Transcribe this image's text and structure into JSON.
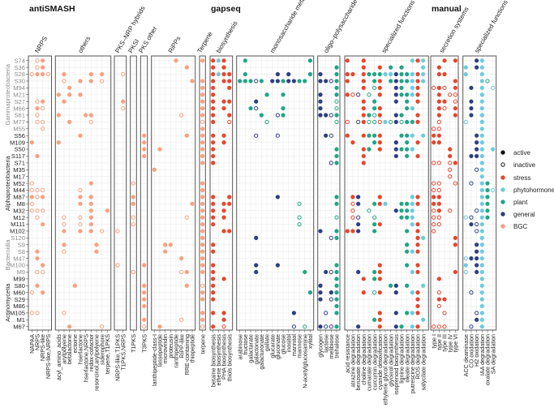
{
  "chart_data": {
    "type": "dot-matrix",
    "legend_position": "right",
    "colors": {
      "S": "#e8452c",
      "P": "#6ccbe0",
      "L": "#21a585",
      "G": "#2e3f80",
      "B": "#f7a081",
      "active": "#111111"
    },
    "legend": [
      {
        "key": "active",
        "label": "active"
      },
      {
        "key": "inactive",
        "label": "inactive"
      },
      {
        "key": "S",
        "label": "stress"
      },
      {
        "key": "P",
        "label": "phytohormone"
      },
      {
        "key": "L",
        "label": "plant"
      },
      {
        "key": "G",
        "label": "general"
      },
      {
        "key": "B",
        "label": "BGC"
      }
    ],
    "groups": [
      {
        "name": "Gammaproteobacteria",
        "rows": [
          0,
          10
        ],
        "color": "#8a8a8a"
      },
      {
        "name": "Alphaproteobacteria",
        "rows": [
          11,
          25
        ],
        "color": "#222222"
      },
      {
        "name": "Bacteroidia",
        "rows": [
          26,
          31
        ],
        "color": "#8a8a8a"
      },
      {
        "name": "Actinomycetia",
        "rows": [
          32,
          39
        ],
        "color": "#222222"
      }
    ],
    "strains": [
      "S74",
      "S36",
      "S28",
      "S30",
      "M94",
      "M21",
      "S27",
      "M66",
      "S61",
      "M77",
      "M55",
      "S56",
      "M109",
      "S50",
      "S117",
      "S71",
      "M35",
      "M17",
      "M52",
      "M44",
      "M87",
      "M8",
      "M32",
      "M12",
      "M111",
      "M102",
      "S120",
      "S9",
      "S8",
      "M47",
      "M100",
      "M9",
      "M99",
      "S80",
      "M60",
      "S29",
      "M86",
      "M105",
      "M1",
      "M67"
    ],
    "sections": [
      {
        "title": "antiSMASH",
        "panel": 0
      },
      {
        "title": "gapseq",
        "panel": 7
      },
      {
        "title": "manual",
        "panel": 11
      }
    ],
    "panels": [
      {
        "header": "NRPS",
        "columns": [
          "NAPAA",
          "NRPS",
          "NRPS-like",
          "NRPS-like,NRPS"
        ],
        "dots": {
          "0": ".bB.",
          "1": ".bB.",
          "2": "bBBb",
          "6": ".bB.",
          "7": ".Bb.",
          "8": ".b..",
          "9": ".bb.",
          "10": "..b.",
          "12": "B...",
          "14": ".B..",
          "18": "b...",
          "19": "bbb.",
          "20": "BbB.",
          "21": "b...",
          "22": "bbb.",
          "23": ".b..",
          "24": "..B.",
          "28": ".B..",
          "29": ".B..",
          "30": "..B.",
          "31": ".bb.",
          "33": ".B..",
          "34": "b.B.",
          "37": "bb.."
        }
      },
      {
        "header": "others",
        "columns": [
          "acyl_amino_acids",
          "arylpolyene",
          "betalactone",
          "ectoine",
          "hserlactone",
          "hserlactone,NRPS",
          "redox-cofactor",
          "resorcinol,arylpolyene",
          "siderophore",
          "terpene,T1PKS"
        ],
        "dots": {
          "2": ".B....B.B.",
          "3": ".b..B.B.b.",
          "4": "..B.......",
          "5": "B.B.B.....",
          "6": ".B........",
          "8": "B....BB...",
          "9": "..B...b...",
          "11": "....B.....",
          "12": "B.........",
          "18": "......B...",
          "19": "....b.....",
          "20": "....B.B...",
          "21": "....B.B...",
          "22": "......B..B",
          "23": ".b..b.B...",
          "24": ".b..b.B...",
          "25": ".B..B.B.b.",
          "27": ".B.....B..",
          "28": ".b.....B..",
          "33": "...B......",
          "37": ".b........",
          "39": "..B.....b."
        }
      },
      {
        "header": "PKS–NRP hybrids",
        "columns": [
          "NRPS-like,T1PKS",
          "T1PKS,NRPS"
        ],
        "dots": {
          "2": ".b",
          "6": ".B",
          "7": ".b",
          "25": "b.",
          "30": "b."
        }
      },
      {
        "header": "PKSI",
        "columns": [
          "T1PKS"
        ],
        "dots": {
          "18": "b",
          "20": "B",
          "21": "B",
          "23": "b",
          "24": "b",
          "31": "b"
        }
      },
      {
        "header": "PKS other",
        "columns": [
          "T3PKS"
        ],
        "dots": {
          "11": "B",
          "12": "B",
          "13": "B",
          "14": "B",
          "30": "B",
          "33": "B",
          "34": "B",
          "35": "B",
          "36": "B",
          "38": "B",
          "39": "b"
        }
      },
      {
        "header": "RiPPs",
        "columns": [
          "lanthipeptide-class-I",
          "lassopeptide",
          "microviridin",
          "proteusin",
          "ranthipeptide",
          "RiPP-like",
          "RRE-containing",
          "thiopeptide"
        ],
        "dots": {
          "0": "....B...",
          "1": "......B.",
          "3": ".......B",
          "8": ".....b..",
          "11": "......B.",
          "13": ".B......",
          "16": "B.......",
          "21": ".......B",
          "23": "......b.",
          "27": "..BB....",
          "28": "..B.....",
          "29": ".....B..",
          "31": ".....bB.",
          "33": "......B.",
          "38": ".....b..",
          "39": ".B......"
        }
      },
      {
        "header": "Terpene",
        "columns": [
          "terpene"
        ],
        "dots": {
          "0": "B",
          "3": "B",
          "4": "B",
          "5": "B",
          "6": "B",
          "7": "B",
          "8": "B",
          "9": "b",
          "10": "B",
          "11": "B",
          "12": "B",
          "13": "B",
          "14": "B",
          "15": "B",
          "18": "B",
          "19": "B",
          "20": "B",
          "21": "B",
          "22": "B",
          "23": "B",
          "24": "B",
          "25": "B",
          "26": "B",
          "27": "B",
          "28": "B",
          "29": "B",
          "30": "B",
          "31": "B",
          "33": "b",
          "34": "B",
          "35": "B",
          "37": "B",
          "38": "B",
          "39": "b"
        }
      },
      {
        "header": "biosynthesis",
        "columns": [
          "betaine biosynthesis",
          "ethene biosynthesis",
          "PHA biosynthesis",
          "thiols biosynthesis"
        ],
        "dots": {
          "0": "SPS.",
          "1": "S.S.",
          "2": "SPSS",
          "3": "S.SS",
          "4": "S..S",
          "5": "S...",
          "6": "S.SS",
          "7": "S.S.",
          "8": "S..S",
          "9": "S..s",
          "11": "S.S.",
          "12": "S.S.",
          "13": "S...",
          "14": "S...",
          "15": "S...",
          "20": "S..S",
          "21": "S.SS",
          "22": "S.S.",
          "23": "S.S.",
          "24": "S...",
          "25": "..SS",
          "27": "S...",
          "28": "S...",
          "30": "S...",
          "31": "S...",
          "32": "S.S.",
          "33": "S...",
          "34": "S...",
          "35": "S...",
          "37": "S.S.",
          "38": "..S.",
          "39": "S.s."
        }
      },
      {
        "header": "monosaccharide metabolism",
        "columns": [
          "arabinose",
          "fructose",
          "galactarate",
          "galactonate",
          "galacturonate",
          "gallate",
          "glucarate",
          "gluconate",
          "glucose",
          "inositol",
          "mannitol",
          "mannose",
          "N-acetylglucosamine",
          "xylitol"
        ],
        "dots": {
          "0": ".L...........L",
          "2": ".L.....G.G...L",
          "3": "LLLgL.GGLGGLL.",
          "5": ".....L..L.....",
          "6": "...G..........",
          "7": "..Lg....L.....",
          "8": "....L..gL.....",
          "9": ".....l........",
          "11": "...g...g......",
          "20": ".......G......",
          "21": "...........l..",
          "23": "...........l..",
          "24": "...........l..",
          "26": "...G..........",
          "30": "...G...G......",
          "31": "...G........L.",
          "34": ".............L",
          "37": "..........G...",
          "39": "..........g.l."
        }
      },
      {
        "header": "oligo–polysaccharide metabolism",
        "columns": [
          "glycogen",
          "lactose",
          "melibiose",
          "trehalose"
        ],
        "dots": {
          "1": "...L",
          "2": "G..L",
          "3": "GGgL",
          "4": "...L",
          "5": "G..L",
          "6": "G..l",
          "7": "G..l",
          "8": "GGgL",
          "9": "...l",
          "11": ".Gg.",
          "13": "...L",
          "14": "...L",
          "15": "..gL",
          "20": "...L",
          "21": "...L",
          "23": "...l",
          "25": "G..L",
          "26": "..gL",
          "30": "...L",
          "31": ".GgL",
          "32": "...L",
          "33": "G..L",
          "34": "G.GL",
          "35": "G.gL",
          "36": "...L",
          "37": ".g.L",
          "39": "GggL"
        }
      },
      {
        "header": "specialized functions",
        "columns": [
          "acid resistance",
          "atrazine degradation",
          "benzoate degradation",
          "choline degradation",
          "cumarate degradation",
          "curcumin degradation",
          "cyanide detoxification",
          "ethylene glycol degradation",
          "glycerol degradation",
          "isoprenoid biosynthesis",
          "lignine degradation",
          "oleate degradation",
          "putrescine degradation",
          "ROS degradation",
          "salycilate degradation"
        ],
        "dots": {
          "0": "S..S........PSP",
          "1": "...S..S.L.L...P",
          "2": "SS.SLLLPPGLLPSP",
          "3": "S..S.LS.LGLLPSP",
          "4": "...S.lS..GL.PS.",
          "5": "Ssg.l.S..GLLPS.",
          "6": "...S.L...G.L.S.",
          "7": "...S.LS....LP..",
          "8": "...SLlS..GL..S.",
          "9": "s.gSllsPlGlLLS.",
          "11": "S..SLLS...LLP.P",
          "12": ".S...LS..G.L.S.",
          "13": "...SL.S..GLLP..",
          "14": "...S.....G.L.S.",
          "15": "...S...........",
          "20": ".SG...S.....PS.",
          "21": ".sG..LSP..LLPS.",
          "22": ".s..l....GLLP..",
          "23": ".sg..l....LLP..",
          "24": "..G..LS.....PS.",
          "25": "SSG..L.....L.S.",
          "26": ".............SP",
          "27": "...........L.S.",
          "28": "...........LPS.",
          "30": "......S....L.S.",
          "31": "..G..LS.....PS.",
          "32": "...S.LS........",
          "33": "........LG.L..P",
          "34": "...S.lS..G..PS.",
          "35": ".............S.",
          "36": ".............S.",
          "37": "......S..G.LPS.",
          "38": ".....LS.......P",
          "39": "..G...S..GL.PS."
        }
      },
      {
        "header": "secretion systems",
        "columns": [
          "type I",
          "type II",
          "type III",
          "type IV",
          "type VI"
        ],
        "dots": {
          "0": "..S.S",
          "1": ".S...",
          "2": ".SS..",
          "3": "....S",
          "4": "sSs.S",
          "5": ".S.ss",
          "6": ".SS.s",
          "7": ".Ss.S",
          "8": ".S..S",
          "9": ".s...",
          "10": "ss...",
          "11": "SS...",
          "12": "SS...",
          "13": "...S.",
          "14": "...S.",
          "15": "ss.sS",
          "16": "...s.",
          "17": "...s.",
          "18": "ss..s",
          "19": "ss...",
          "20": "SS...",
          "21": "SS...",
          "22": "sS.s.",
          "23": "ss...",
          "24": "ss...",
          "25": "s....",
          "26": "....S",
          "27": "....S",
          "31": "....S",
          "32": ".S...",
          "34": ".s...",
          "35": ".SS..",
          "36": ".s...",
          "37": "..s..",
          "39": "sss.."
        }
      },
      {
        "header": "specialized functions",
        "columns": [
          "ACC deaminase",
          "CO oxidation",
          "H2 oxidation",
          "IAA degradation",
          "oxalate degradation",
          "SA degradation"
        ],
        "dots": {
          "0": "..GP..",
          "1": "P.GP..",
          "2": "P..P..",
          "3": "...Pl.",
          "4": ".G.P.p",
          "5": "...P..",
          "6": ".G.P..",
          "7": ".G.P..",
          "8": ".G.P..",
          "9": "p..P..",
          "10": "...P..",
          "11": "..GP..",
          "12": "..GP..",
          "13": "..GP.P",
          "14": ".GGP..",
          "15": "...P..",
          "16": "..gP..",
          "17": "...P..",
          "18": ".g.PL.",
          "19": "...PLp",
          "20": "...PL.",
          "21": "...PL.",
          "22": "..gPL.",
          "23": "pg.PL.",
          "24": ".GgP..",
          "25": "..gP..",
          "26": "...P..",
          "27": "..GP..",
          "28": "..GP..",
          "29": "pGGP..",
          "30": "P.GP..",
          "31": "p.GP..",
          "32": "...P..",
          "33": "...P..",
          "34": ".g.P..",
          "35": "...P..",
          "36": "...P..",
          "37": "..gP..",
          "38": "..GP..",
          "39": ".g.P.."
        }
      }
    ]
  }
}
